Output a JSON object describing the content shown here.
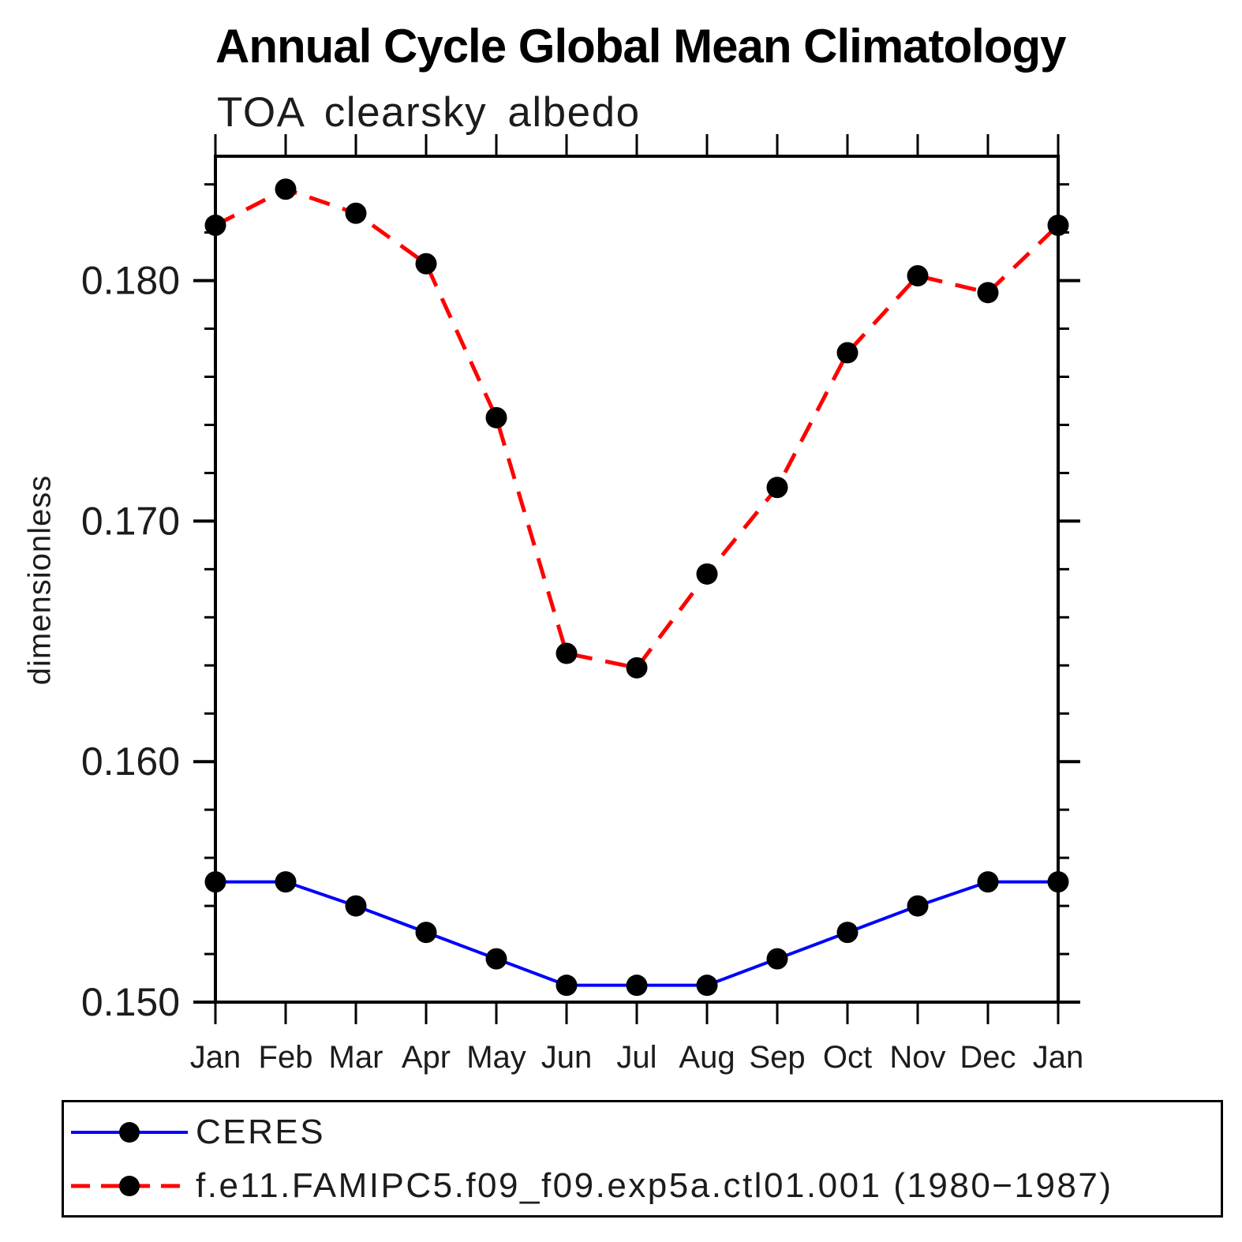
{
  "header": {
    "title": "Annual Cycle Global Mean Climatology",
    "subtitle": "TOA clearsky albedo"
  },
  "chart_data": {
    "type": "line",
    "title": "Annual Cycle Global Mean Climatology",
    "subtitle": "TOA clearsky albedo",
    "xlabel": "",
    "ylabel": "dimensionless",
    "categories": [
      "Jan",
      "Feb",
      "Mar",
      "Apr",
      "May",
      "Jun",
      "Jul",
      "Aug",
      "Sep",
      "Oct",
      "Nov",
      "Dec",
      "Jan"
    ],
    "ylim": [
      0.15,
      0.18517
    ],
    "y_major_ticks": [
      0.15,
      0.16,
      0.17,
      0.18
    ],
    "y_tick_labels": [
      "0.150",
      "0.160",
      "0.170",
      "0.180"
    ],
    "y_minor_step": 0.002,
    "grid": false,
    "tick_direction": "out",
    "legend_position": "bottom",
    "marker": "filled-circle",
    "marker_color": "#000000",
    "axis_color": "#000000",
    "series": [
      {
        "name": "CERES",
        "color": "#0000ff",
        "style": "solid",
        "values": [
          0.155,
          0.155,
          0.154,
          0.1529,
          0.1518,
          0.1507,
          0.1507,
          0.1507,
          0.1518,
          0.1529,
          0.154,
          0.155,
          0.155
        ]
      },
      {
        "name": "f.e11.FAMIPC5.f09_f09.exp5a.ctl01.001 (1980−1987)",
        "color": "#ff0000",
        "style": "dashed",
        "values": [
          0.1823,
          0.1838,
          0.1828,
          0.1807,
          0.1743,
          0.1645,
          0.1639,
          0.1678,
          0.1714,
          0.177,
          0.1802,
          0.1795,
          0.1823
        ]
      }
    ]
  }
}
